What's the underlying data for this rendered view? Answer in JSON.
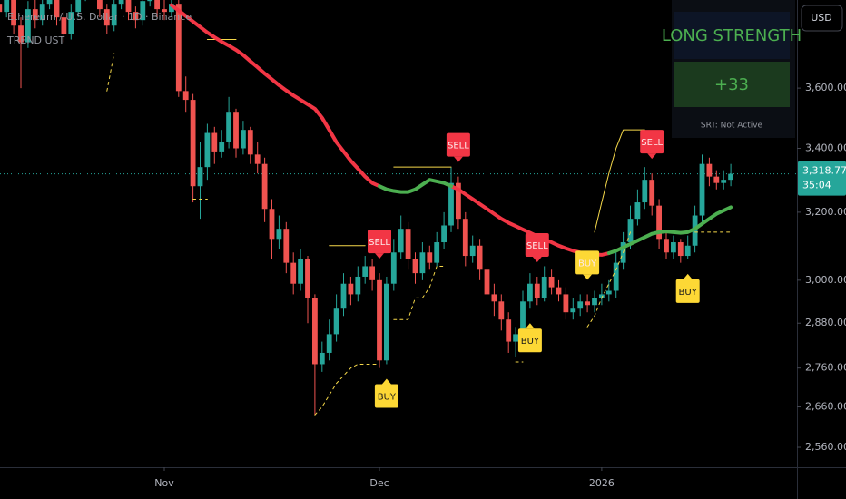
{
  "chart_data": {
    "type": "candlestick",
    "title": "Ethereum / U.S. Dollar · 1D · Binance",
    "indicator": "TREND UST",
    "categories": [
      null,
      null,
      null,
      null,
      null,
      null,
      null,
      null,
      null,
      null,
      null,
      null,
      null,
      null,
      null,
      null,
      null,
      null,
      null,
      null,
      null,
      null,
      null,
      "Nov",
      null,
      null,
      null,
      null,
      null,
      null,
      null,
      null,
      null,
      null,
      null,
      null,
      null,
      null,
      null,
      null,
      null,
      null,
      null,
      null,
      null,
      null,
      null,
      null,
      null,
      null,
      null,
      null,
      null,
      "Dec",
      null,
      null,
      null,
      null,
      null,
      null,
      null,
      null,
      null,
      null,
      null,
      null,
      null,
      null,
      null,
      null,
      null,
      null,
      null,
      null,
      null,
      null,
      null,
      null,
      null,
      null,
      null,
      null,
      null,
      null,
      "2026",
      null,
      null,
      null,
      null,
      null,
      null,
      null,
      null,
      null,
      null,
      null,
      null,
      null,
      null,
      null,
      null,
      null,
      null
    ],
    "open": [
      3900,
      3870,
      3950,
      3820,
      3760,
      3880,
      3840,
      3900,
      3980,
      3850,
      3790,
      3870,
      3930,
      3990,
      3950,
      3880,
      3820,
      3900,
      3960,
      3870,
      3840,
      3910,
      3930,
      3880,
      3870,
      3900,
      3590,
      3560,
      3280,
      3340,
      3450,
      3390,
      3420,
      3520,
      3400,
      3460,
      3380,
      3350,
      3210,
      3120,
      3150,
      3050,
      2990,
      3060,
      2950,
      2770,
      2800,
      2850,
      2920,
      2990,
      2960,
      3010,
      3040,
      3000,
      2780,
      2990,
      3080,
      3150,
      3060,
      3020,
      3080,
      3050,
      3110,
      3160,
      3290,
      3180,
      3070,
      3100,
      3030,
      2960,
      2940,
      2890,
      2830,
      2850,
      2940,
      2990,
      2950,
      3010,
      2980,
      2960,
      2910,
      2920,
      2940,
      2930,
      2950,
      2960,
      2970,
      3050,
      3110,
      3180,
      3230,
      3300,
      3220,
      3120,
      3080,
      3110,
      3070,
      3100,
      3190,
      3350,
      3310,
      3290,
      3300
    ],
    "high": [
      3940,
      3990,
      3970,
      3850,
      3910,
      3920,
      3930,
      4010,
      4000,
      3870,
      3900,
      3960,
      4020,
      4010,
      3970,
      3900,
      3930,
      3990,
      3980,
      3890,
      3940,
      3970,
      3950,
      3920,
      3960,
      3920,
      3640,
      3580,
      3420,
      3480,
      3470,
      3460,
      3570,
      3530,
      3490,
      3470,
      3420,
      3370,
      3240,
      3190,
      3170,
      3080,
      3090,
      3070,
      2960,
      2830,
      2890,
      2960,
      3020,
      3010,
      3040,
      3070,
      3060,
      3020,
      3010,
      3120,
      3190,
      3170,
      3080,
      3110,
      3100,
      3140,
      3200,
      3340,
      3310,
      3200,
      3130,
      3120,
      3050,
      2990,
      2960,
      2910,
      2870,
      2970,
      3020,
      3010,
      3040,
      3030,
      3000,
      2980,
      2950,
      2960,
      2960,
      2970,
      2990,
      3000,
      3080,
      3140,
      3220,
      3270,
      3340,
      3320,
      3240,
      3140,
      3130,
      3120,
      3130,
      3220,
      3380,
      3370,
      3330,
      3330,
      3350
    ],
    "low": [
      3840,
      3850,
      3790,
      3600,
      3740,
      3810,
      3820,
      3880,
      3820,
      3760,
      3770,
      3850,
      3910,
      3920,
      3850,
      3790,
      3800,
      3880,
      3840,
      3810,
      3820,
      3890,
      3850,
      3840,
      3850,
      3570,
      3520,
      3230,
      3180,
      3300,
      3350,
      3370,
      3400,
      3370,
      3380,
      3350,
      3320,
      3170,
      3060,
      3090,
      3020,
      2960,
      2970,
      2880,
      2640,
      2750,
      2780,
      2830,
      2900,
      2930,
      2940,
      2990,
      2970,
      2760,
      2770,
      2970,
      3060,
      3030,
      2990,
      3000,
      3030,
      3040,
      3090,
      3140,
      3150,
      3040,
      3050,
      3000,
      2930,
      2900,
      2860,
      2800,
      2790,
      2830,
      2920,
      2930,
      2940,
      2960,
      2940,
      2890,
      2890,
      2900,
      2910,
      2910,
      2930,
      2940,
      2950,
      3030,
      3090,
      3160,
      3210,
      3190,
      3090,
      3060,
      3060,
      3050,
      3060,
      3080,
      3170,
      3280,
      3270,
      3270,
      3280
    ],
    "close": [
      3870,
      3950,
      3820,
      3760,
      3880,
      3840,
      3900,
      3980,
      3850,
      3790,
      3870,
      3930,
      3990,
      3950,
      3880,
      3820,
      3900,
      3960,
      3870,
      3840,
      3910,
      3930,
      3880,
      3870,
      3900,
      3590,
      3560,
      3280,
      3340,
      3450,
      3390,
      3420,
      3520,
      3400,
      3460,
      3380,
      3350,
      3210,
      3120,
      3150,
      3050,
      2990,
      3060,
      2950,
      2770,
      2800,
      2850,
      2920,
      2990,
      2960,
      3010,
      3040,
      3000,
      2780,
      2990,
      3080,
      3150,
      3060,
      3020,
      3080,
      3050,
      3110,
      3160,
      3290,
      3180,
      3070,
      3100,
      3030,
      2960,
      2940,
      2890,
      2830,
      2850,
      2940,
      2990,
      2950,
      3010,
      2980,
      2960,
      2910,
      2920,
      2940,
      2930,
      2950,
      2960,
      2970,
      3050,
      3110,
      3180,
      3230,
      3300,
      3220,
      3120,
      3080,
      3110,
      3070,
      3100,
      3190,
      3350,
      3310,
      3290,
      3300,
      3318.77
    ],
    "up_color": "#26a69a",
    "down_color": "#ef5350",
    "ylim": [
      2512,
      3914
    ],
    "log_scale": true,
    "yticks": [
      {
        "value": 2560,
        "label": "2,560.00"
      },
      {
        "value": 2660,
        "label": "2,660.00"
      },
      {
        "value": 2760,
        "label": "2,760.00"
      },
      {
        "value": 2880,
        "label": "2,880.00"
      },
      {
        "value": 3000,
        "label": "3,000.00"
      },
      {
        "value": 3200,
        "label": "3,200.00"
      },
      {
        "value": 3400,
        "label": "3,400.00"
      },
      {
        "value": 3600,
        "label": "3,600.00"
      }
    ],
    "moving_average": [
      {
        "color": "#f23645",
        "values": [
          null,
          null,
          null,
          null,
          null,
          null,
          null,
          null,
          null,
          null,
          null,
          null,
          null,
          null,
          null,
          null,
          null,
          null,
          null,
          null,
          null,
          null,
          null,
          null,
          3895,
          3875,
          3855,
          3835,
          3815,
          3795,
          3778,
          3762,
          3748,
          3733,
          3715,
          3693,
          3672,
          3650,
          3630,
          3610,
          3592,
          3575,
          3560,
          3545,
          3530,
          3500,
          3460,
          3420,
          3390,
          3360,
          3335,
          3310,
          3290,
          3280,
          null,
          null,
          null,
          null,
          null,
          null,
          null,
          null,
          null,
          3280,
          3270,
          3255,
          3240,
          3225,
          3210,
          3195,
          3180,
          3168,
          3158,
          3148,
          3138,
          3128,
          3118,
          3110,
          3100,
          3092,
          3085,
          3080,
          3076,
          3074,
          3073,
          3078,
          null,
          null,
          null,
          null,
          null,
          null,
          null,
          null,
          null,
          null,
          null,
          null,
          null,
          null,
          null,
          null,
          null
        ]
      },
      {
        "color": "#4caf50",
        "values": [
          null,
          null,
          null,
          null,
          null,
          null,
          null,
          null,
          null,
          null,
          null,
          null,
          null,
          null,
          null,
          null,
          null,
          null,
          null,
          null,
          null,
          null,
          null,
          null,
          null,
          null,
          null,
          null,
          null,
          null,
          null,
          null,
          null,
          null,
          null,
          null,
          null,
          null,
          null,
          null,
          null,
          null,
          null,
          null,
          null,
          null,
          null,
          null,
          null,
          null,
          null,
          null,
          null,
          3280,
          3270,
          3265,
          3262,
          3262,
          3270,
          3285,
          3300,
          3295,
          3290,
          3280,
          null,
          null,
          null,
          null,
          null,
          null,
          null,
          null,
          null,
          null,
          null,
          null,
          null,
          null,
          null,
          null,
          null,
          null,
          null,
          null,
          null,
          3078,
          3085,
          3095,
          3105,
          3115,
          3125,
          3135,
          3140,
          3142,
          3140,
          3138,
          3140,
          3150,
          3165,
          3180,
          3195,
          3205,
          3215
        ]
      }
    ],
    "trail_lower": {
      "color": "#f5d84a",
      "dashed": true,
      "values": [
        null,
        null,
        null,
        null,
        null,
        null,
        null,
        null,
        null,
        null,
        null,
        null,
        null,
        null,
        null,
        3590,
        3720,
        null,
        null,
        null,
        null,
        null,
        null,
        null,
        null,
        null,
        null,
        3240,
        3240,
        3240,
        null,
        null,
        null,
        null,
        null,
        null,
        null,
        null,
        null,
        null,
        null,
        null,
        null,
        null,
        2640,
        2660,
        2690,
        2720,
        2740,
        2760,
        2770,
        2770,
        2770,
        2770,
        null,
        2890,
        2890,
        2890,
        2950,
        2950,
        2980,
        3040,
        3040,
        null,
        null,
        null,
        null,
        null,
        null,
        null,
        null,
        null,
        2776,
        2776,
        null,
        null,
        null,
        null,
        null,
        null,
        null,
        null,
        2870,
        2900,
        2950,
        2990,
        3030,
        3080,
        3140,
        null,
        null,
        null,
        null,
        null,
        null,
        null,
        null,
        3140,
        3140,
        3140,
        3140,
        3140,
        3140
      ]
    },
    "trail_upper": {
      "color": "#f5d84a",
      "dashed": false,
      "values": [
        null,
        null,
        null,
        null,
        null,
        null,
        null,
        null,
        null,
        null,
        null,
        null,
        null,
        null,
        null,
        null,
        null,
        null,
        null,
        null,
        null,
        null,
        null,
        null,
        null,
        null,
        null,
        null,
        null,
        3770,
        3770,
        3770,
        3770,
        3770,
        null,
        null,
        null,
        null,
        null,
        null,
        null,
        null,
        null,
        null,
        null,
        null,
        3100,
        3100,
        3100,
        3100,
        3100,
        3100,
        null,
        null,
        null,
        3340,
        3340,
        3340,
        3340,
        3340,
        3340,
        3340,
        3340,
        3340,
        null,
        null,
        null,
        null,
        null,
        null,
        null,
        null,
        null,
        null,
        null,
        null,
        null,
        null,
        null,
        null,
        null,
        null,
        null,
        3140,
        3230,
        3320,
        3400,
        3460,
        3460,
        3460,
        3460,
        null,
        null,
        null,
        null,
        null,
        null,
        null,
        null,
        null,
        null,
        null,
        null
      ]
    },
    "signals": [
      null,
      null,
      null,
      null,
      null,
      null,
      null,
      null,
      null,
      null,
      null,
      null,
      null,
      null,
      null,
      null,
      null,
      null,
      null,
      null,
      null,
      null,
      null,
      null,
      null,
      null,
      null,
      null,
      null,
      null,
      null,
      null,
      null,
      null,
      null,
      null,
      null,
      null,
      null,
      null,
      null,
      null,
      null,
      null,
      null,
      null,
      null,
      null,
      null,
      null,
      null,
      null,
      null,
      "SELL",
      "BUY",
      null,
      null,
      null,
      null,
      null,
      null,
      null,
      null,
      null,
      "SELL",
      null,
      null,
      null,
      null,
      null,
      null,
      null,
      null,
      null,
      "BUY",
      "SELL",
      null,
      null,
      null,
      null,
      null,
      null,
      "BUY",
      null,
      null,
      null,
      null,
      null,
      null,
      null,
      null,
      "SELL",
      null,
      null,
      null,
      null,
      "BUY",
      null,
      null,
      null,
      null,
      null,
      null
    ],
    "signal_colors": {
      "SELL": "#f23645",
      "BUY": "#fdd835"
    },
    "last_price": {
      "value": 3318.77,
      "label": "3,318.77"
    },
    "countdown": "35:04",
    "currency": "USD"
  },
  "panel": {
    "title": "LONG STRENGTH",
    "value": "+33",
    "status": "SRT: Not Active"
  }
}
